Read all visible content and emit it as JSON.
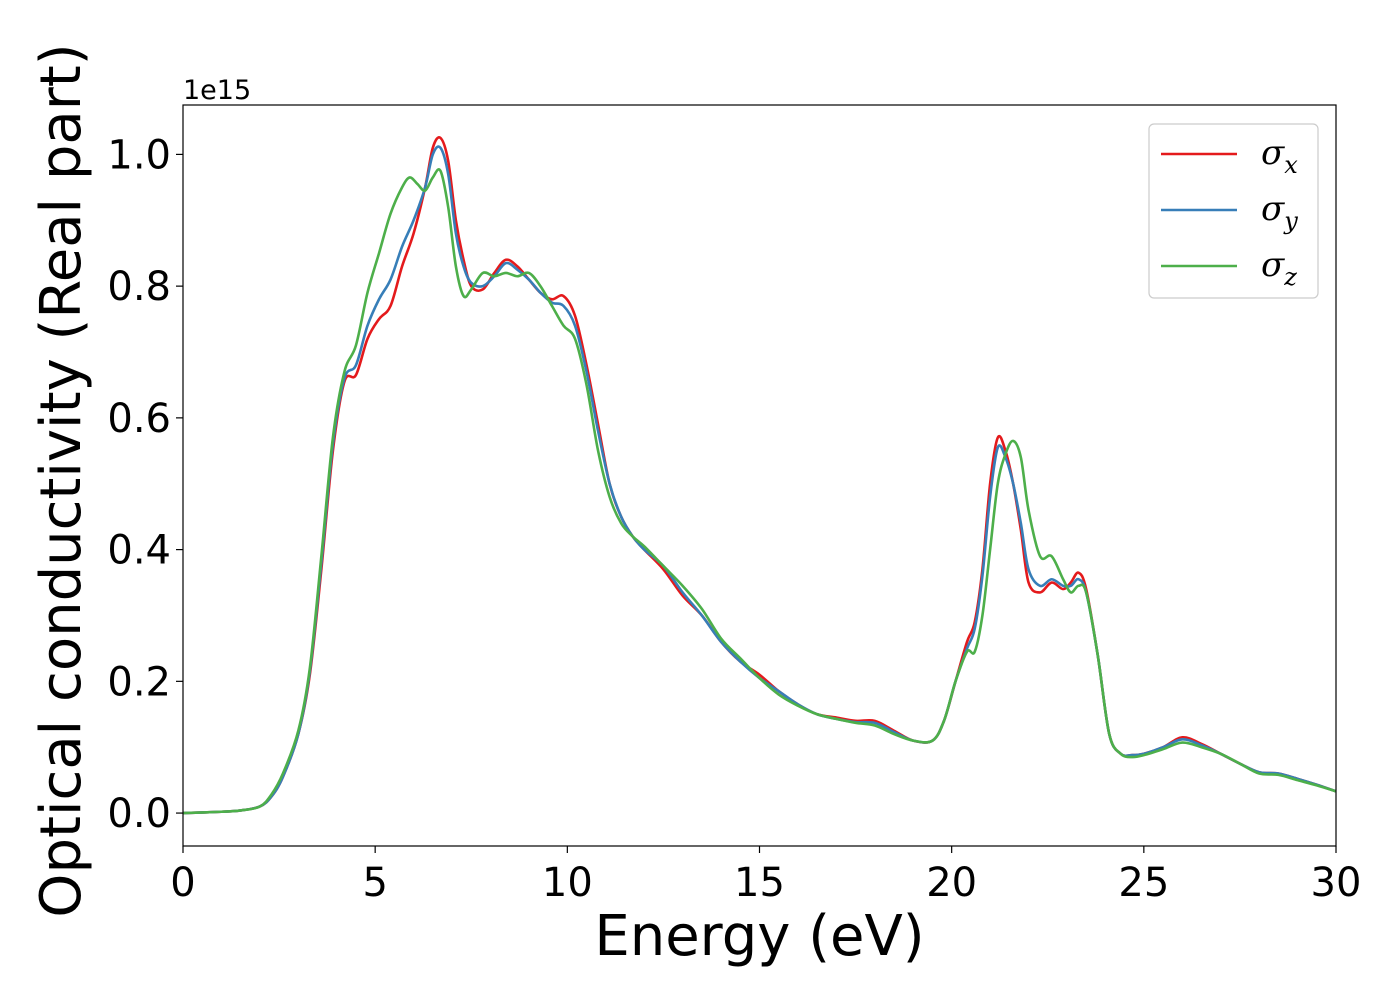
{
  "chart_data": {
    "type": "line",
    "xlabel": "Energy (eV)",
    "ylabel": "Optical conductivity (Real part)",
    "y_offset_text": "1e15",
    "y_scale": 1000000000000000.0,
    "xlim": [
      0,
      30
    ],
    "ylim": [
      -0.05,
      1.075
    ],
    "x_ticks": [
      0,
      5,
      10,
      15,
      20,
      25,
      30
    ],
    "x_tick_labels": [
      "0",
      "5",
      "10",
      "15",
      "20",
      "25",
      "30"
    ],
    "y_ticks": [
      0.0,
      0.2,
      0.4,
      0.6,
      0.8,
      1.0
    ],
    "y_tick_labels": [
      "0.0",
      "0.2",
      "0.4",
      "0.6",
      "0.8",
      "1.0"
    ],
    "grid": false,
    "legend_position": "top-right",
    "series": [
      {
        "name": "σ_x",
        "symbol": "σ",
        "subscript": "x",
        "color": "#e41a1c",
        "x": [
          0,
          1,
          1.5,
          2,
          2.3,
          2.6,
          3,
          3.3,
          3.6,
          3.9,
          4.2,
          4.5,
          4.8,
          5.1,
          5.4,
          5.7,
          6.0,
          6.3,
          6.5,
          6.7,
          6.9,
          7.1,
          7.3,
          7.5,
          7.8,
          8.1,
          8.4,
          8.7,
          9.0,
          9.3,
          9.6,
          9.9,
          10.2,
          10.5,
          10.8,
          11.1,
          11.4,
          11.7,
          12.0,
          12.5,
          13.0,
          13.5,
          14.0,
          14.5,
          15.0,
          15.5,
          16.0,
          16.5,
          17.0,
          17.5,
          18.0,
          18.5,
          19.0,
          19.5,
          19.8,
          20.1,
          20.4,
          20.6,
          20.8,
          21.0,
          21.2,
          21.4,
          21.6,
          21.8,
          22.0,
          22.3,
          22.6,
          22.9,
          23.1,
          23.3,
          23.5,
          23.8,
          24.1,
          24.4,
          24.7,
          25.0,
          25.5,
          26.0,
          26.5,
          27.0,
          27.5,
          28.0,
          28.5,
          29.0,
          29.5,
          30.0
        ],
        "values": [
          0.0,
          0.002,
          0.004,
          0.01,
          0.025,
          0.055,
          0.12,
          0.21,
          0.37,
          0.55,
          0.655,
          0.665,
          0.72,
          0.75,
          0.77,
          0.83,
          0.88,
          0.95,
          1.01,
          1.025,
          0.99,
          0.9,
          0.84,
          0.8,
          0.795,
          0.82,
          0.84,
          0.83,
          0.81,
          0.79,
          0.78,
          0.785,
          0.755,
          0.68,
          0.59,
          0.5,
          0.45,
          0.42,
          0.4,
          0.37,
          0.33,
          0.3,
          0.26,
          0.23,
          0.21,
          0.185,
          0.165,
          0.15,
          0.145,
          0.14,
          0.14,
          0.125,
          0.11,
          0.11,
          0.14,
          0.2,
          0.26,
          0.29,
          0.37,
          0.5,
          0.57,
          0.55,
          0.5,
          0.43,
          0.35,
          0.335,
          0.35,
          0.34,
          0.35,
          0.365,
          0.34,
          0.24,
          0.12,
          0.09,
          0.088,
          0.09,
          0.1,
          0.115,
          0.105,
          0.09,
          0.075,
          0.062,
          0.06,
          0.052,
          0.043,
          0.033
        ]
      },
      {
        "name": "σ_y",
        "symbol": "σ",
        "subscript": "y",
        "color": "#377eb8",
        "x": [
          0,
          1,
          1.5,
          2,
          2.3,
          2.6,
          3,
          3.3,
          3.6,
          3.9,
          4.2,
          4.5,
          4.8,
          5.1,
          5.4,
          5.7,
          6.0,
          6.3,
          6.5,
          6.7,
          6.9,
          7.1,
          7.3,
          7.5,
          7.8,
          8.1,
          8.4,
          8.7,
          9.0,
          9.3,
          9.6,
          9.9,
          10.2,
          10.5,
          10.8,
          11.1,
          11.4,
          11.7,
          12.0,
          12.5,
          13.0,
          13.5,
          14.0,
          14.5,
          15.0,
          15.5,
          16.0,
          16.5,
          17.0,
          17.5,
          18.0,
          18.5,
          19.0,
          19.5,
          19.8,
          20.1,
          20.4,
          20.6,
          20.8,
          21.0,
          21.2,
          21.4,
          21.6,
          21.8,
          22.0,
          22.3,
          22.6,
          22.9,
          23.1,
          23.3,
          23.5,
          23.8,
          24.1,
          24.4,
          24.7,
          25.0,
          25.5,
          26.0,
          26.5,
          27.0,
          27.5,
          28.0,
          28.5,
          29.0,
          29.5,
          30.0
        ],
        "values": [
          0.0,
          0.002,
          0.004,
          0.01,
          0.025,
          0.055,
          0.12,
          0.215,
          0.38,
          0.56,
          0.66,
          0.68,
          0.74,
          0.78,
          0.81,
          0.86,
          0.9,
          0.95,
          1.0,
          1.01,
          0.97,
          0.88,
          0.83,
          0.805,
          0.8,
          0.815,
          0.835,
          0.825,
          0.81,
          0.79,
          0.775,
          0.77,
          0.74,
          0.67,
          0.58,
          0.5,
          0.45,
          0.42,
          0.4,
          0.375,
          0.335,
          0.3,
          0.26,
          0.23,
          0.205,
          0.185,
          0.165,
          0.15,
          0.143,
          0.138,
          0.137,
          0.123,
          0.11,
          0.11,
          0.14,
          0.2,
          0.25,
          0.28,
          0.36,
          0.48,
          0.555,
          0.54,
          0.5,
          0.44,
          0.37,
          0.345,
          0.355,
          0.345,
          0.345,
          0.355,
          0.335,
          0.24,
          0.12,
          0.09,
          0.088,
          0.09,
          0.1,
          0.112,
          0.103,
          0.09,
          0.075,
          0.062,
          0.06,
          0.052,
          0.043,
          0.033
        ]
      },
      {
        "name": "σ_z",
        "symbol": "σ",
        "subscript": "z",
        "color": "#4daf4a",
        "x": [
          0,
          1,
          1.5,
          2,
          2.3,
          2.6,
          3,
          3.3,
          3.6,
          3.9,
          4.2,
          4.5,
          4.8,
          5.1,
          5.4,
          5.7,
          5.9,
          6.1,
          6.3,
          6.5,
          6.7,
          6.9,
          7.1,
          7.3,
          7.5,
          7.8,
          8.1,
          8.4,
          8.7,
          9.0,
          9.3,
          9.6,
          9.9,
          10.2,
          10.5,
          10.8,
          11.1,
          11.4,
          11.7,
          12.0,
          12.5,
          13.0,
          13.5,
          14.0,
          14.5,
          15.0,
          15.5,
          16.0,
          16.5,
          17.0,
          17.5,
          18.0,
          18.5,
          19.0,
          19.5,
          19.8,
          20.1,
          20.4,
          20.6,
          20.8,
          21.0,
          21.2,
          21.4,
          21.6,
          21.8,
          22.0,
          22.3,
          22.6,
          22.9,
          23.1,
          23.3,
          23.5,
          23.8,
          24.1,
          24.4,
          24.7,
          25.0,
          25.5,
          26.0,
          26.5,
          27.0,
          27.5,
          28.0,
          28.5,
          29.0,
          29.5,
          30.0
        ],
        "values": [
          0.0,
          0.002,
          0.004,
          0.01,
          0.028,
          0.06,
          0.125,
          0.22,
          0.39,
          0.57,
          0.67,
          0.71,
          0.79,
          0.85,
          0.91,
          0.95,
          0.965,
          0.955,
          0.945,
          0.965,
          0.975,
          0.92,
          0.83,
          0.785,
          0.795,
          0.82,
          0.815,
          0.82,
          0.815,
          0.82,
          0.8,
          0.77,
          0.74,
          0.72,
          0.65,
          0.55,
          0.48,
          0.44,
          0.42,
          0.405,
          0.375,
          0.345,
          0.31,
          0.265,
          0.235,
          0.205,
          0.18,
          0.163,
          0.15,
          0.143,
          0.137,
          0.133,
          0.12,
          0.11,
          0.11,
          0.14,
          0.2,
          0.245,
          0.245,
          0.3,
          0.4,
          0.5,
          0.545,
          0.565,
          0.54,
          0.46,
          0.39,
          0.39,
          0.355,
          0.335,
          0.345,
          0.335,
          0.24,
          0.12,
          0.09,
          0.085,
          0.088,
          0.097,
          0.107,
          0.1,
          0.09,
          0.075,
          0.06,
          0.058,
          0.05,
          0.042,
          0.033
        ]
      }
    ]
  }
}
